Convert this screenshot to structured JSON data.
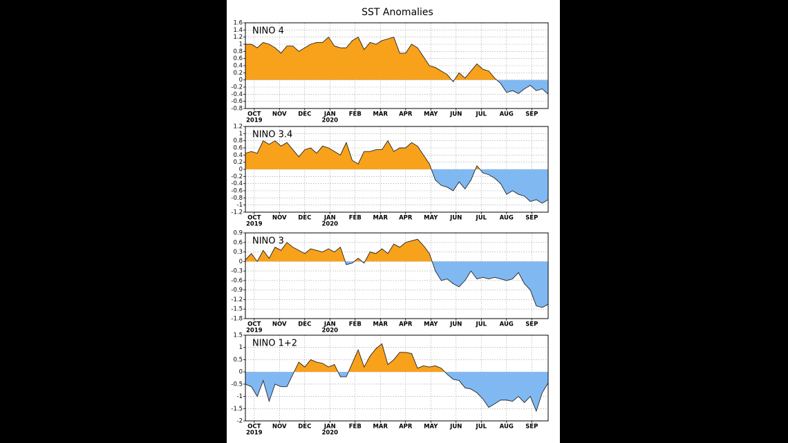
{
  "title": "SST Anomalies",
  "chart_data": [
    {
      "type": "area",
      "label": "NINO 4",
      "months": [
        "OCT",
        "NOV",
        "DEC",
        "JAN",
        "FEB",
        "MAR",
        "APR",
        "MAY",
        "JUN",
        "JUL",
        "AUG",
        "SEP"
      ],
      "years": [
        "2019",
        null,
        null,
        "2020",
        null,
        null,
        null,
        null,
        null,
        null,
        null,
        null
      ],
      "values": [
        1.0,
        1.0,
        0.9,
        1.05,
        1.0,
        0.9,
        0.75,
        0.95,
        0.95,
        0.8,
        0.9,
        1.0,
        1.05,
        1.05,
        1.2,
        0.95,
        0.9,
        0.9,
        1.1,
        1.2,
        0.85,
        1.05,
        1.0,
        1.1,
        1.15,
        1.2,
        0.75,
        0.75,
        1.0,
        0.9,
        0.65,
        0.4,
        0.35,
        0.25,
        0.15,
        -0.05,
        0.2,
        0.05,
        0.25,
        0.45,
        0.3,
        0.25,
        0.05,
        -0.1,
        -0.35,
        -0.3,
        -0.38,
        -0.25,
        -0.15,
        -0.3,
        -0.25,
        -0.4
      ],
      "ylim": [
        -0.8,
        1.6
      ],
      "yticks": [
        -0.8,
        -0.6,
        -0.4,
        -0.2,
        0,
        0.2,
        0.4,
        0.6,
        0.8,
        1,
        1.2,
        1.4,
        1.6
      ],
      "positive_color": "#f8a11b",
      "negative_color": "#80b9f2",
      "grid": true
    },
    {
      "type": "area",
      "label": "NINO 3.4",
      "months": [
        "OCT",
        "NOV",
        "DEC",
        "JAN",
        "FEB",
        "MAR",
        "APR",
        "MAY",
        "JUN",
        "JUL",
        "AUG",
        "SEP"
      ],
      "years": [
        "2019",
        null,
        null,
        "2020",
        null,
        null,
        null,
        null,
        null,
        null,
        null,
        null
      ],
      "values": [
        0.45,
        0.5,
        0.45,
        0.8,
        0.7,
        0.8,
        0.65,
        0.75,
        0.55,
        0.35,
        0.55,
        0.6,
        0.45,
        0.65,
        0.6,
        0.5,
        0.4,
        0.75,
        0.25,
        0.15,
        0.5,
        0.5,
        0.55,
        0.55,
        0.8,
        0.5,
        0.6,
        0.6,
        0.75,
        0.65,
        0.4,
        0.15,
        -0.3,
        -0.45,
        -0.5,
        -0.6,
        -0.35,
        -0.55,
        -0.3,
        0.1,
        -0.1,
        -0.15,
        -0.25,
        -0.4,
        -0.7,
        -0.6,
        -0.7,
        -0.75,
        -0.9,
        -0.85,
        -0.95,
        -0.85
      ],
      "ylim": [
        -1.2,
        1.2
      ],
      "yticks": [
        -1.2,
        -1,
        -0.8,
        -0.6,
        -0.4,
        -0.2,
        0,
        0.2,
        0.4,
        0.6,
        0.8,
        1,
        1.2
      ],
      "positive_color": "#f8a11b",
      "negative_color": "#80b9f2",
      "grid": true
    },
    {
      "type": "area",
      "label": "NINO 3",
      "months": [
        "OCT",
        "NOV",
        "DEC",
        "JAN",
        "FEB",
        "MAR",
        "APR",
        "MAY",
        "JUN",
        "JUL",
        "AUG",
        "SEP"
      ],
      "years": [
        "2019",
        null,
        null,
        "2020",
        null,
        null,
        null,
        null,
        null,
        null,
        null,
        null
      ],
      "values": [
        0.05,
        0.25,
        0,
        0.35,
        0.1,
        0.45,
        0.35,
        0.6,
        0.45,
        0.35,
        0.25,
        0.4,
        0.35,
        0.3,
        0.4,
        0.3,
        0.45,
        -0.1,
        -0.05,
        0.1,
        -0.05,
        0.3,
        0.25,
        0.4,
        0.25,
        0.55,
        0.45,
        0.6,
        0.65,
        0.7,
        0.5,
        0.25,
        -0.3,
        -0.6,
        -0.55,
        -0.7,
        -0.8,
        -0.6,
        -0.3,
        -0.55,
        -0.5,
        -0.55,
        -0.5,
        -0.55,
        -0.6,
        -0.55,
        -0.35,
        -0.7,
        -0.9,
        -1.4,
        -1.45,
        -1.35
      ],
      "ylim": [
        -1.8,
        0.9
      ],
      "yticks": [
        -1.8,
        -1.5,
        -1.2,
        -0.9,
        -0.6,
        -0.3,
        0,
        0.3,
        0.6,
        0.9
      ],
      "positive_color": "#f8a11b",
      "negative_color": "#80b9f2",
      "grid": true
    },
    {
      "type": "area",
      "label": "NINO 1+2",
      "months": [
        "OCT",
        "NOV",
        "DEC",
        "JAN",
        "FEB",
        "MAR",
        "APR",
        "MAY",
        "JUN",
        "JUL",
        "AUG",
        "SEP"
      ],
      "years": [
        "2019",
        null,
        null,
        "2020",
        null,
        null,
        null,
        null,
        null,
        null,
        null,
        null
      ],
      "values": [
        -0.5,
        -0.6,
        -1.0,
        -0.35,
        -1.2,
        -0.5,
        -0.6,
        -0.6,
        -0.1,
        0.4,
        0.2,
        0.5,
        0.4,
        0.35,
        0.2,
        0.3,
        -0.2,
        -0.2,
        0.35,
        0.9,
        0.2,
        0.65,
        0.95,
        1.15,
        0.3,
        0.5,
        0.8,
        0.8,
        0.75,
        0.15,
        0.25,
        0.2,
        0.25,
        0.15,
        -0.1,
        -0.3,
        -0.35,
        -0.65,
        -0.7,
        -0.85,
        -1.1,
        -1.45,
        -1.3,
        -1.15,
        -1.15,
        -1.2,
        -1.0,
        -1.25,
        -1.0,
        -1.6,
        -0.85,
        -0.45
      ],
      "ylim": [
        -2,
        1.5
      ],
      "yticks": [
        -2,
        -1.5,
        -1,
        -0.5,
        0,
        0.5,
        1,
        1.5
      ],
      "positive_color": "#f8a11b",
      "negative_color": "#80b9f2",
      "grid": true
    }
  ]
}
